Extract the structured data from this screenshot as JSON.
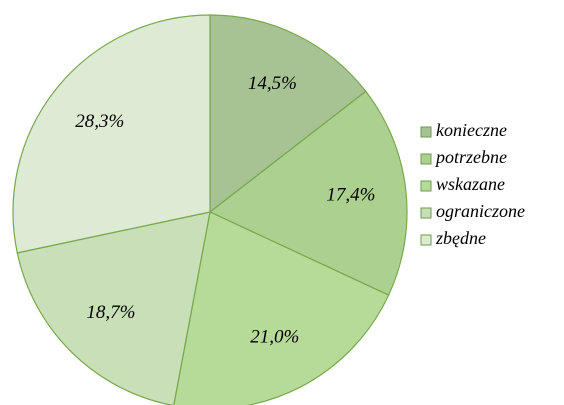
{
  "chart_data": {
    "type": "pie",
    "categories": [
      "konieczne",
      "potrzebne",
      "wskazane",
      "ograniczone",
      "zbędne"
    ],
    "values": [
      14.5,
      17.4,
      21.0,
      18.7,
      28.3
    ],
    "value_labels": [
      "14,5%",
      "17,4%",
      "21,0%",
      "18,7%",
      "28,3%"
    ],
    "colors": [
      "#a7c394",
      "#acd090",
      "#b6db98",
      "#c8dfb8",
      "#deebd4"
    ],
    "legend": "right"
  }
}
